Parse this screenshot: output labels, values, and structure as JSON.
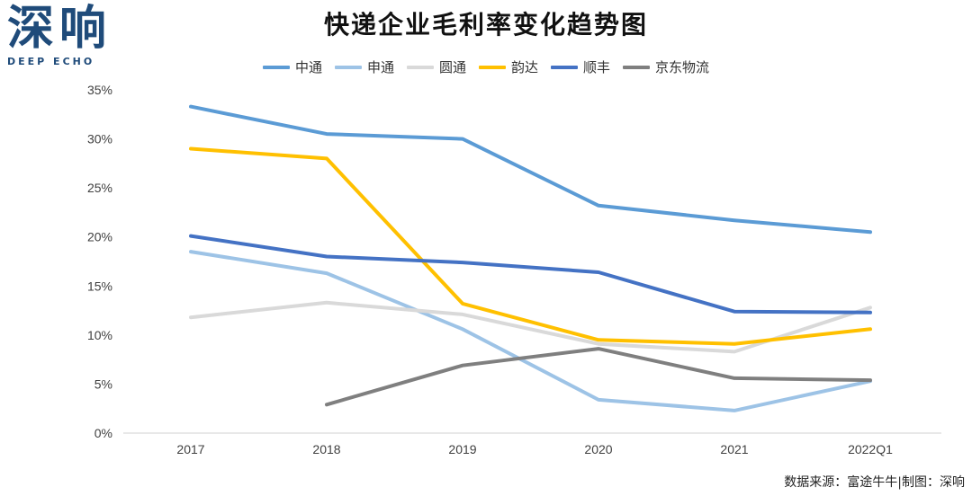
{
  "logo": {
    "cn": "深响",
    "en": "DEEP ECHO"
  },
  "source": "数据来源：富途牛牛|制图：深响",
  "chart_data": {
    "type": "line",
    "title": "快递企业毛利率变化趋势图",
    "xlabel": "",
    "ylabel": "",
    "categories": [
      "2017",
      "2018",
      "2019",
      "2020",
      "2021",
      "2022Q1"
    ],
    "ylim": [
      0,
      35
    ],
    "yticks": [
      "0%",
      "5%",
      "10%",
      "15%",
      "20%",
      "25%",
      "30%",
      "35%"
    ],
    "grid": false,
    "legend_position": "top",
    "series": [
      {
        "name": "中通",
        "color": "#5b9bd5",
        "values": [
          33.3,
          30.5,
          30.0,
          23.2,
          21.7,
          20.5
        ]
      },
      {
        "name": "申通",
        "color": "#9dc3e6",
        "values": [
          18.5,
          16.3,
          10.6,
          3.4,
          2.3,
          5.3
        ]
      },
      {
        "name": "圆通",
        "color": "#d9d9d9",
        "values": [
          11.8,
          13.3,
          12.1,
          9.1,
          8.3,
          12.8
        ]
      },
      {
        "name": "韵达",
        "color": "#ffc000",
        "values": [
          29.0,
          28.0,
          13.2,
          9.5,
          9.1,
          10.6
        ]
      },
      {
        "name": "顺丰",
        "color": "#4472c4",
        "values": [
          20.1,
          18.0,
          17.4,
          16.4,
          12.4,
          12.3
        ]
      },
      {
        "name": "京东物流",
        "color": "#7f7f7f",
        "values": [
          null,
          2.9,
          6.9,
          8.6,
          5.6,
          5.4
        ]
      }
    ]
  }
}
